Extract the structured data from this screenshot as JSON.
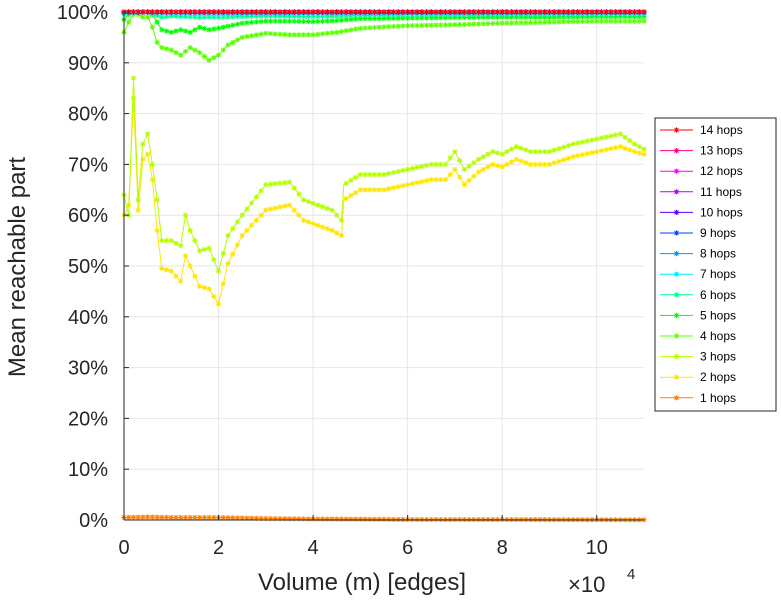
{
  "chart_data": {
    "type": "line",
    "xlabel": "Volume (m) [edges]",
    "ylabel": "Mean reachable part",
    "x_multiplier_base": "×10",
    "x_multiplier_exp": "4",
    "xlim": [
      0,
      110000
    ],
    "ylim": [
      0,
      100
    ],
    "xticks": [
      0,
      20000,
      40000,
      60000,
      80000,
      100000
    ],
    "xtick_labels": [
      "0",
      "2",
      "4",
      "6",
      "8",
      "10"
    ],
    "yticks": [
      0,
      10,
      20,
      30,
      40,
      50,
      60,
      70,
      80,
      90,
      100
    ],
    "ytick_labels": [
      "0%",
      "10%",
      "20%",
      "30%",
      "40%",
      "50%",
      "60%",
      "70%",
      "80%",
      "90%",
      "100%"
    ],
    "grid": true,
    "legend_position": "right",
    "series": [
      {
        "name": "14 hops",
        "color": "#ff0000",
        "points": [
          [
            0,
            100
          ],
          [
            10000,
            100
          ],
          [
            20000,
            100
          ],
          [
            40000,
            100
          ],
          [
            60000,
            100
          ],
          [
            80000,
            100
          ],
          [
            100000,
            100
          ],
          [
            110000,
            100
          ]
        ]
      },
      {
        "name": "13 hops",
        "color": "#ff0080",
        "points": [
          [
            0,
            100
          ],
          [
            10000,
            100
          ],
          [
            20000,
            100
          ],
          [
            40000,
            100
          ],
          [
            60000,
            100
          ],
          [
            80000,
            100
          ],
          [
            100000,
            100
          ],
          [
            110000,
            100
          ]
        ]
      },
      {
        "name": "12 hops",
        "color": "#ff00ff",
        "points": [
          [
            0,
            100
          ],
          [
            10000,
            100
          ],
          [
            20000,
            100
          ],
          [
            40000,
            100
          ],
          [
            60000,
            100
          ],
          [
            80000,
            100
          ],
          [
            100000,
            100
          ],
          [
            110000,
            100
          ]
        ]
      },
      {
        "name": "11 hops",
        "color": "#b400ff",
        "points": [
          [
            0,
            100
          ],
          [
            10000,
            100
          ],
          [
            20000,
            100
          ],
          [
            40000,
            100
          ],
          [
            60000,
            100
          ],
          [
            80000,
            100
          ],
          [
            100000,
            100
          ],
          [
            110000,
            100
          ]
        ]
      },
      {
        "name": "10 hops",
        "color": "#5a00ff",
        "points": [
          [
            0,
            100
          ],
          [
            10000,
            100
          ],
          [
            20000,
            100
          ],
          [
            40000,
            100
          ],
          [
            60000,
            100
          ],
          [
            80000,
            100
          ],
          [
            100000,
            100
          ],
          [
            110000,
            100
          ]
        ]
      },
      {
        "name": "9 hops",
        "color": "#0040ff",
        "points": [
          [
            0,
            100
          ],
          [
            5000,
            100
          ],
          [
            10000,
            100
          ],
          [
            20000,
            100
          ],
          [
            40000,
            100
          ],
          [
            60000,
            100
          ],
          [
            80000,
            100
          ],
          [
            100000,
            100
          ],
          [
            110000,
            100
          ]
        ]
      },
      {
        "name": "8 hops",
        "color": "#0096ff",
        "points": [
          [
            0,
            100
          ],
          [
            5000,
            100
          ],
          [
            10000,
            100
          ],
          [
            20000,
            99.9
          ],
          [
            40000,
            99.9
          ],
          [
            60000,
            99.9
          ],
          [
            80000,
            100
          ],
          [
            100000,
            100
          ],
          [
            110000,
            100
          ]
        ]
      },
      {
        "name": "7 hops",
        "color": "#00e6ff",
        "points": [
          [
            0,
            99.8
          ],
          [
            5000,
            99.9
          ],
          [
            10000,
            99.7
          ],
          [
            20000,
            99.6
          ],
          [
            40000,
            99.7
          ],
          [
            60000,
            99.8
          ],
          [
            80000,
            99.8
          ],
          [
            100000,
            99.8
          ],
          [
            110000,
            99.8
          ]
        ]
      },
      {
        "name": "6 hops",
        "color": "#00ff96",
        "points": [
          [
            0,
            99.5
          ],
          [
            2000,
            100
          ],
          [
            5000,
            100
          ],
          [
            8000,
            99
          ],
          [
            10000,
            99.2
          ],
          [
            15000,
            99
          ],
          [
            20000,
            99
          ],
          [
            30000,
            99.2
          ],
          [
            40000,
            99.1
          ],
          [
            50000,
            99.3
          ],
          [
            60000,
            99.4
          ],
          [
            80000,
            99.5
          ],
          [
            100000,
            99.5
          ],
          [
            110000,
            99.5
          ]
        ]
      },
      {
        "name": "5 hops",
        "color": "#00ff00",
        "points": [
          [
            0,
            98.5
          ],
          [
            1000,
            99.5
          ],
          [
            2000,
            100
          ],
          [
            3000,
            100
          ],
          [
            5000,
            100
          ],
          [
            6000,
            99.5
          ],
          [
            7000,
            98
          ],
          [
            8000,
            96.5
          ],
          [
            10000,
            96
          ],
          [
            12000,
            96.5
          ],
          [
            14000,
            96
          ],
          [
            16000,
            97
          ],
          [
            18000,
            96.5
          ],
          [
            20000,
            96.8
          ],
          [
            25000,
            97.8
          ],
          [
            30000,
            98.2
          ],
          [
            35000,
            98.2
          ],
          [
            40000,
            98.1
          ],
          [
            45000,
            98.3
          ],
          [
            50000,
            98.7
          ],
          [
            60000,
            98.8
          ],
          [
            70000,
            98.9
          ],
          [
            80000,
            99
          ],
          [
            90000,
            99
          ],
          [
            100000,
            99.1
          ],
          [
            110000,
            99.1
          ]
        ]
      },
      {
        "name": "4 hops",
        "color": "#5aff00",
        "points": [
          [
            0,
            96
          ],
          [
            1000,
            98
          ],
          [
            2000,
            99.5
          ],
          [
            3000,
            99.5
          ],
          [
            4000,
            99
          ],
          [
            5000,
            99
          ],
          [
            6000,
            97
          ],
          [
            7000,
            94
          ],
          [
            8000,
            93
          ],
          [
            10000,
            92.5
          ],
          [
            12000,
            91.5
          ],
          [
            14000,
            93
          ],
          [
            16000,
            92
          ],
          [
            18000,
            90.5
          ],
          [
            20000,
            91.5
          ],
          [
            22000,
            93.5
          ],
          [
            25000,
            95
          ],
          [
            30000,
            95.8
          ],
          [
            35000,
            95.5
          ],
          [
            40000,
            95.5
          ],
          [
            45000,
            96
          ],
          [
            50000,
            96.8
          ],
          [
            60000,
            97.3
          ],
          [
            70000,
            97.5
          ],
          [
            80000,
            97.8
          ],
          [
            90000,
            98
          ],
          [
            100000,
            98.2
          ],
          [
            110000,
            98.2
          ]
        ]
      },
      {
        "name": "3 hops",
        "color": "#b4ff00",
        "points": [
          [
            0,
            64
          ],
          [
            1000,
            60
          ],
          [
            2000,
            87
          ],
          [
            3000,
            63
          ],
          [
            4000,
            74
          ],
          [
            5000,
            76
          ],
          [
            6000,
            70
          ],
          [
            7000,
            63
          ],
          [
            8000,
            55
          ],
          [
            10000,
            55
          ],
          [
            12000,
            54
          ],
          [
            13000,
            60
          ],
          [
            14000,
            57
          ],
          [
            16000,
            53
          ],
          [
            18000,
            53.5
          ],
          [
            20000,
            49
          ],
          [
            22000,
            56
          ],
          [
            25000,
            60
          ],
          [
            30000,
            66
          ],
          [
            35000,
            66.5
          ],
          [
            38000,
            63
          ],
          [
            44000,
            61
          ],
          [
            46000,
            59
          ],
          [
            46500,
            66
          ],
          [
            50000,
            68
          ],
          [
            55000,
            68
          ],
          [
            60000,
            69
          ],
          [
            65000,
            70
          ],
          [
            68000,
            70
          ],
          [
            70000,
            72.5
          ],
          [
            72000,
            69
          ],
          [
            75000,
            71
          ],
          [
            78000,
            72.5
          ],
          [
            80000,
            72
          ],
          [
            83000,
            73.5
          ],
          [
            86000,
            72.5
          ],
          [
            90000,
            72.5
          ],
          [
            95000,
            74
          ],
          [
            100000,
            75
          ],
          [
            105000,
            76
          ],
          [
            108000,
            74
          ],
          [
            110000,
            73
          ]
        ]
      },
      {
        "name": "2 hops",
        "color": "#ffe600",
        "points": [
          [
            0,
            60
          ],
          [
            1000,
            62
          ],
          [
            2000,
            83
          ],
          [
            3000,
            61
          ],
          [
            4000,
            71
          ],
          [
            5000,
            72
          ],
          [
            6000,
            67
          ],
          [
            7000,
            57
          ],
          [
            8000,
            49.5
          ],
          [
            10000,
            49
          ],
          [
            12000,
            47
          ],
          [
            13000,
            52
          ],
          [
            14000,
            50
          ],
          [
            16000,
            46
          ],
          [
            18000,
            45.5
          ],
          [
            20000,
            42.5
          ],
          [
            22000,
            50.5
          ],
          [
            25000,
            56
          ],
          [
            30000,
            61
          ],
          [
            35000,
            62
          ],
          [
            38000,
            59
          ],
          [
            44000,
            57
          ],
          [
            46000,
            56
          ],
          [
            46500,
            63
          ],
          [
            50000,
            65
          ],
          [
            55000,
            65
          ],
          [
            60000,
            66
          ],
          [
            65000,
            67
          ],
          [
            68000,
            67
          ],
          [
            70000,
            69
          ],
          [
            72000,
            66
          ],
          [
            75000,
            68.5
          ],
          [
            78000,
            70
          ],
          [
            80000,
            69.5
          ],
          [
            83000,
            71
          ],
          [
            86000,
            70
          ],
          [
            90000,
            70
          ],
          [
            95000,
            71.5
          ],
          [
            100000,
            72.5
          ],
          [
            105000,
            73.5
          ],
          [
            108000,
            72.5
          ],
          [
            110000,
            72
          ]
        ]
      },
      {
        "name": "1 hops",
        "color": "#ff8000",
        "points": [
          [
            0,
            0.5
          ],
          [
            5000,
            0.6
          ],
          [
            10000,
            0.5
          ],
          [
            20000,
            0.5
          ],
          [
            30000,
            0.3
          ],
          [
            40000,
            0.2
          ],
          [
            60000,
            0.1
          ],
          [
            80000,
            0.1
          ],
          [
            100000,
            0.05
          ],
          [
            110000,
            0.05
          ]
        ]
      }
    ]
  }
}
